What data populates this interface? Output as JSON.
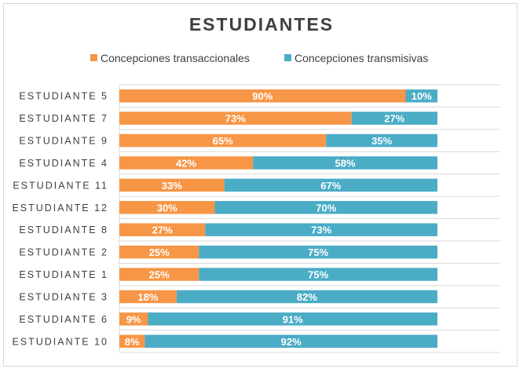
{
  "chart_data": {
    "type": "bar",
    "orientation": "horizontal",
    "stacked": "percent",
    "title": "ESTUDIANTES",
    "legend_position": "top",
    "categories": [
      "ESTUDIANTE 5",
      "ESTUDIANTE 7",
      "ESTUDIANTE 9",
      "ESTUDIANTE 4",
      "ESTUDIANTE 11",
      "ESTUDIANTE 12",
      "ESTUDIANTE 8",
      "ESTUDIANTE 2",
      "ESTUDIANTE 1",
      "ESTUDIANTE 3",
      "ESTUDIANTE 6",
      "ESTUDIANTE 10"
    ],
    "series": [
      {
        "name": "Concepciones transaccionales",
        "color": "#F79646",
        "values": [
          90,
          73,
          65,
          42,
          33,
          30,
          27,
          25,
          25,
          18,
          9,
          8
        ],
        "labels": [
          "90%",
          "73%",
          "65%",
          "42%",
          "33%",
          "30%",
          "27%",
          "25%",
          "25%",
          "18%",
          "9%",
          "8%"
        ]
      },
      {
        "name": "Concepciones transmisivas",
        "color": "#4BACC6",
        "values": [
          10,
          27,
          35,
          58,
          67,
          70,
          73,
          75,
          75,
          82,
          91,
          92
        ],
        "labels": [
          "10%",
          "27%",
          "35%",
          "58%",
          "67%",
          "70%",
          "73%",
          "75%",
          "75%",
          "82%",
          "91%",
          "92%"
        ]
      }
    ],
    "xlim": [
      0,
      100
    ],
    "grid": true,
    "data_labels": true
  }
}
